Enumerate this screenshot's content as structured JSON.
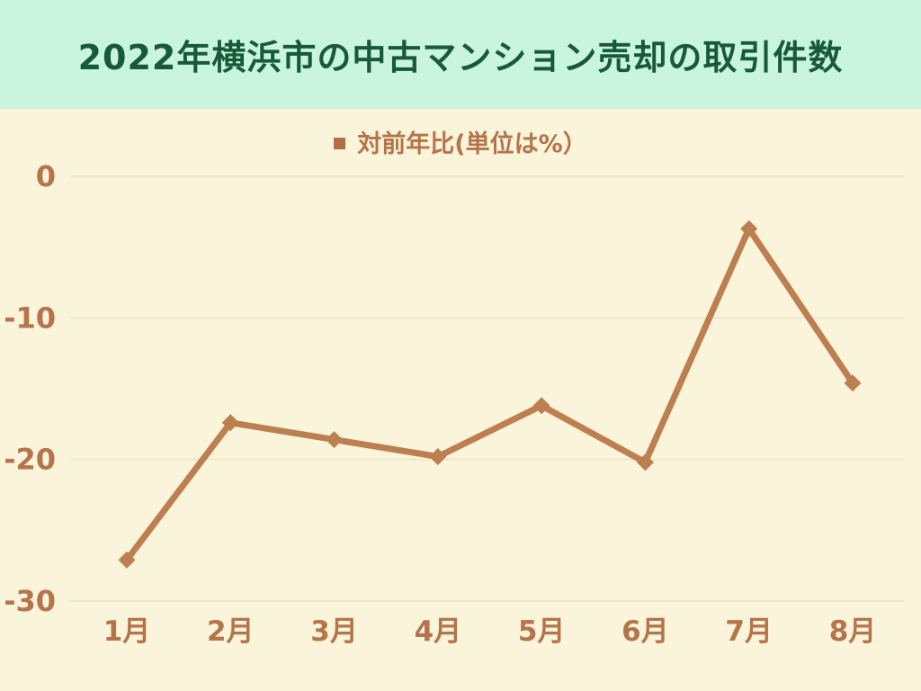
{
  "header": {
    "title": "2022年横浜市の中古マンション売却の取引件数",
    "band_color": "#c9f5de",
    "text_color": "#175a3a"
  },
  "legend": {
    "label": "対前年比(単位は%）",
    "marker_color": "#b26d41",
    "text_color": "#b5744a"
  },
  "chart_data": {
    "type": "line",
    "title": "2022年横浜市の中古マンション売却の取引件数",
    "categories": [
      "1月",
      "2月",
      "3月",
      "4月",
      "5月",
      "6月",
      "7月",
      "8月"
    ],
    "series": [
      {
        "name": "対前年比(単位は%）",
        "values": [
          -27.1,
          -17.4,
          -18.6,
          -19.8,
          -16.2,
          -20.2,
          -3.7,
          -14.6
        ]
      }
    ],
    "xlabel": "",
    "ylabel": "",
    "ylim": [
      -30,
      0
    ],
    "yticks": [
      0,
      -10,
      -20,
      -30
    ],
    "grid": true,
    "legend_position": "top-center",
    "marker": "diamond",
    "line_color": "#bd7f4f",
    "marker_color": "#bd7f4f",
    "gridline_color": "#efe7ca",
    "axis_label_color": "#b5744a",
    "background_color": "#faf4da"
  }
}
